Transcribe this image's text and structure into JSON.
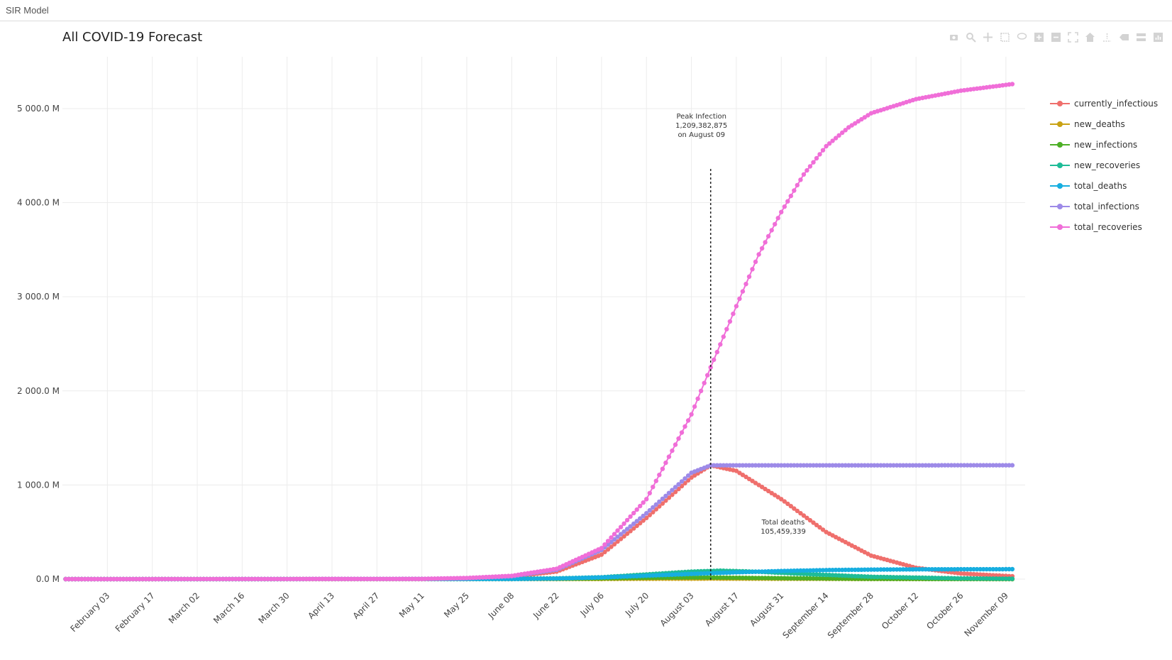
{
  "app": {
    "title": "SIR Model"
  },
  "modebar": {
    "icons": [
      "camera-icon",
      "zoom-icon",
      "pan-icon",
      "box-select-icon",
      "lasso-icon",
      "zoom-in-icon",
      "zoom-out-icon",
      "autoscale-icon",
      "reset-axes-icon",
      "spike-lines-icon",
      "hover-closest-icon",
      "hover-compare-icon",
      "plotly-logo-icon"
    ]
  },
  "chart_data": {
    "type": "line",
    "title": "All COVID-19 Forecast",
    "xlabel": "",
    "ylabel": "",
    "x_range": [
      "2020-01-20",
      "2020-11-15"
    ],
    "x_start": "2020-01-21",
    "x_end": "2020-11-11",
    "ylim": [
      -30,
      5550
    ],
    "y_ticks": [
      0,
      1000,
      2000,
      3000,
      4000,
      5000
    ],
    "y_tick_labels": [
      "0.0 M",
      "1 000.0 M",
      "2 000.0 M",
      "3 000.0 M",
      "4 000.0 M",
      "5 000.0 M"
    ],
    "x_tick_dates": [
      "2020-02-03",
      "2020-02-17",
      "2020-03-02",
      "2020-03-16",
      "2020-03-30",
      "2020-04-13",
      "2020-04-27",
      "2020-05-11",
      "2020-05-25",
      "2020-06-08",
      "2020-06-22",
      "2020-07-06",
      "2020-07-20",
      "2020-08-03",
      "2020-08-17",
      "2020-08-31",
      "2020-09-14",
      "2020-09-28",
      "2020-10-12",
      "2020-10-26",
      "2020-11-09"
    ],
    "x_tick_labels": [
      "February 03",
      "February 17",
      "March 02",
      "March 16",
      "March 30",
      "April 13",
      "April 27",
      "May 11",
      "May 25",
      "June 08",
      "June 22",
      "July 06",
      "July 20",
      "August 03",
      "August 17",
      "August 31",
      "September 14",
      "September 28",
      "October 12",
      "October 26",
      "November 09"
    ],
    "grid": true,
    "legend_position": "right",
    "series": [
      {
        "name": "currently_infectious",
        "color": "#ef6f6c",
        "points": [
          [
            "2020-01-21",
            0
          ],
          [
            "2020-05-11",
            2
          ],
          [
            "2020-05-25",
            8
          ],
          [
            "2020-06-08",
            25
          ],
          [
            "2020-06-22",
            80
          ],
          [
            "2020-07-06",
            260
          ],
          [
            "2020-07-20",
            650
          ],
          [
            "2020-08-03",
            1080
          ],
          [
            "2020-08-09",
            1209
          ],
          [
            "2020-08-17",
            1150
          ],
          [
            "2020-08-31",
            850
          ],
          [
            "2020-09-14",
            500
          ],
          [
            "2020-09-28",
            250
          ],
          [
            "2020-10-12",
            120
          ],
          [
            "2020-10-26",
            60
          ],
          [
            "2020-11-11",
            30
          ]
        ]
      },
      {
        "name": "new_deaths",
        "color": "#c9a214",
        "points": [
          [
            "2020-01-21",
            0
          ],
          [
            "2020-06-08",
            0.5
          ],
          [
            "2020-07-06",
            2
          ],
          [
            "2020-07-20",
            4
          ],
          [
            "2020-08-09",
            6
          ],
          [
            "2020-08-31",
            4
          ],
          [
            "2020-09-28",
            1.5
          ],
          [
            "2020-11-11",
            0.3
          ]
        ]
      },
      {
        "name": "new_infections",
        "color": "#4daf26",
        "points": [
          [
            "2020-01-21",
            0
          ],
          [
            "2020-06-22",
            3
          ],
          [
            "2020-07-06",
            8
          ],
          [
            "2020-07-20",
            14
          ],
          [
            "2020-08-03",
            18
          ],
          [
            "2020-08-09",
            17
          ],
          [
            "2020-08-31",
            10
          ],
          [
            "2020-09-28",
            3
          ],
          [
            "2020-11-11",
            0.5
          ]
        ]
      },
      {
        "name": "new_recoveries",
        "color": "#1ebc97",
        "points": [
          [
            "2020-01-21",
            0
          ],
          [
            "2020-05-25",
            1
          ],
          [
            "2020-06-22",
            8
          ],
          [
            "2020-07-06",
            20
          ],
          [
            "2020-07-20",
            50
          ],
          [
            "2020-08-03",
            80
          ],
          [
            "2020-08-12",
            90
          ],
          [
            "2020-08-24",
            78
          ],
          [
            "2020-09-07",
            55
          ],
          [
            "2020-09-28",
            25
          ],
          [
            "2020-10-26",
            8
          ],
          [
            "2020-11-11",
            4
          ]
        ]
      },
      {
        "name": "total_deaths",
        "color": "#16aee0",
        "points": [
          [
            "2020-01-21",
            0
          ],
          [
            "2020-06-08",
            1
          ],
          [
            "2020-06-22",
            6
          ],
          [
            "2020-07-06",
            18
          ],
          [
            "2020-07-20",
            36
          ],
          [
            "2020-08-03",
            55
          ],
          [
            "2020-08-17",
            72
          ],
          [
            "2020-08-31",
            86
          ],
          [
            "2020-09-14",
            96
          ],
          [
            "2020-09-28",
            101
          ],
          [
            "2020-10-12",
            104
          ],
          [
            "2020-11-11",
            105.46
          ]
        ]
      },
      {
        "name": "total_infections",
        "color": "#9d8ae8",
        "points": [
          [
            "2020-01-21",
            0
          ],
          [
            "2020-05-11",
            3
          ],
          [
            "2020-05-25",
            10
          ],
          [
            "2020-06-08",
            30
          ],
          [
            "2020-06-22",
            100
          ],
          [
            "2020-07-06",
            310
          ],
          [
            "2020-07-20",
            700
          ],
          [
            "2020-08-03",
            1130
          ],
          [
            "2020-08-09",
            1209
          ],
          [
            "2020-11-11",
            1209.38
          ]
        ]
      },
      {
        "name": "total_recoveries",
        "color": "#f06ed8",
        "points": [
          [
            "2020-01-21",
            0
          ],
          [
            "2020-05-11",
            2
          ],
          [
            "2020-05-25",
            12
          ],
          [
            "2020-06-08",
            35
          ],
          [
            "2020-06-22",
            110
          ],
          [
            "2020-07-06",
            330
          ],
          [
            "2020-07-20",
            850
          ],
          [
            "2020-08-03",
            1750
          ],
          [
            "2020-08-09",
            2250
          ],
          [
            "2020-08-17",
            2900
          ],
          [
            "2020-08-24",
            3450
          ],
          [
            "2020-08-31",
            3900
          ],
          [
            "2020-09-07",
            4300
          ],
          [
            "2020-09-14",
            4600
          ],
          [
            "2020-09-21",
            4800
          ],
          [
            "2020-09-28",
            4950
          ],
          [
            "2020-10-12",
            5100
          ],
          [
            "2020-10-26",
            5190
          ],
          [
            "2020-11-11",
            5260
          ]
        ]
      }
    ],
    "annotations": {
      "peak": {
        "line1": "Peak Infection",
        "line2": "1,209,382,875",
        "line3": "on August 09",
        "date": "2020-08-09"
      },
      "deaths": {
        "line1": "Total deaths",
        "line2": "105,459,339"
      }
    }
  }
}
